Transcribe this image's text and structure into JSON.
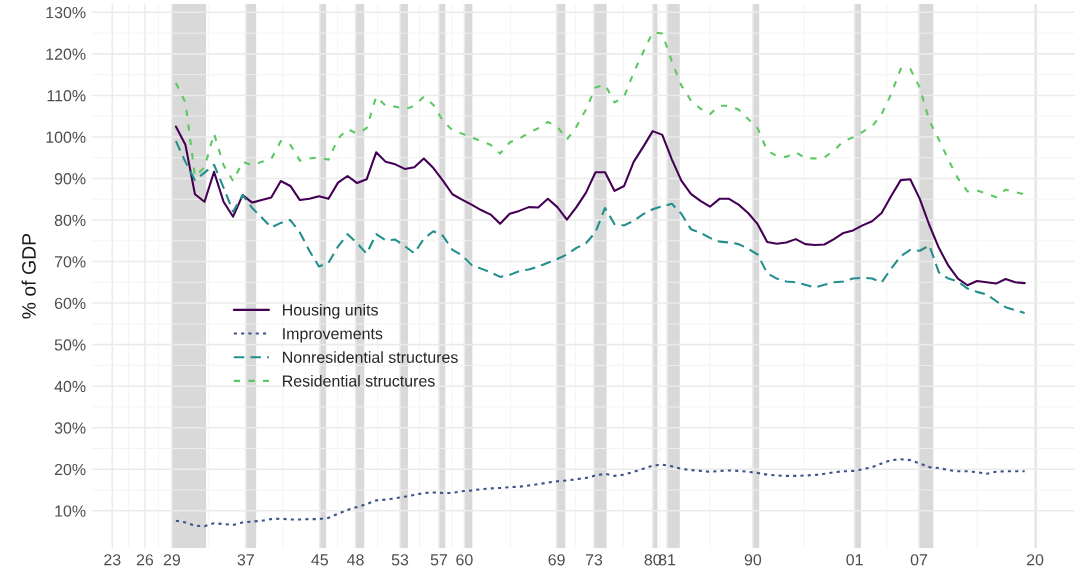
{
  "chart_data": {
    "type": "line",
    "ylabel": "% of GDP",
    "x": [
      "1929-12-31",
      "1930-12-31",
      "1931-12-31",
      "1932-12-31",
      "1933-12-31",
      "1934-12-31",
      "1935-12-31",
      "1936-12-31",
      "1937-12-31",
      "1938-12-31",
      "1939-12-31",
      "1940-12-31",
      "1941-12-31",
      "1942-12-31",
      "1943-12-31",
      "1944-12-31",
      "1945-12-31",
      "1946-12-31",
      "1947-12-31",
      "1948-12-31",
      "1949-12-31",
      "1950-12-31",
      "1951-12-31",
      "1952-12-31",
      "1953-12-31",
      "1954-12-31",
      "1955-12-31",
      "1956-12-31",
      "1957-12-31",
      "1958-12-31",
      "1959-12-31",
      "1960-12-31",
      "1961-12-31",
      "1962-12-31",
      "1963-12-31",
      "1964-12-31",
      "1965-12-31",
      "1966-12-31",
      "1967-12-31",
      "1968-12-31",
      "1969-12-31",
      "1970-12-31",
      "1971-12-31",
      "1972-12-31",
      "1973-12-31",
      "1974-12-31",
      "1975-12-31",
      "1976-12-31",
      "1977-12-31",
      "1978-12-31",
      "1979-12-31",
      "1980-12-31",
      "1981-12-31",
      "1982-12-31",
      "1983-12-31",
      "1984-12-31",
      "1985-12-31",
      "1986-12-31",
      "1987-12-31",
      "1988-12-31",
      "1989-12-31",
      "1990-12-31",
      "1991-12-31",
      "1992-12-31",
      "1993-12-31",
      "1994-12-31",
      "1995-12-31",
      "1996-12-31",
      "1997-12-31",
      "1998-12-31",
      "1999-12-31",
      "2000-12-31",
      "2001-12-31",
      "2002-12-31",
      "2003-12-31",
      "2004-12-31",
      "2005-12-31",
      "2006-12-31",
      "2007-12-31",
      "2008-12-31",
      "2009-12-31",
      "2010-12-31",
      "2011-12-31",
      "2012-12-31",
      "2013-12-31",
      "2014-12-31",
      "2015-12-31",
      "2016-12-31",
      "2017-12-31",
      "2018-12-31"
    ],
    "series": [
      {
        "name": "Housing units",
        "color": "#440154",
        "line_style": "solid",
        "values": [
          102.5,
          98.1,
          86.2,
          84.4,
          91.6,
          84.4,
          80.8,
          86,
          84.2,
          84.8,
          85.4,
          89.4,
          88.2,
          84.8,
          85.1,
          85.7,
          85.1,
          89,
          90.6,
          88.9,
          89.8,
          96.3,
          94,
          93.4,
          92.3,
          92.7,
          94.8,
          92.5,
          89.5,
          86.2,
          84.9,
          83.7,
          82.4,
          81.3,
          79.1,
          81.5,
          82.2,
          83.1,
          83,
          85.1,
          83.1,
          80.1,
          83.1,
          86.6,
          91.5,
          91.5,
          87,
          88.2,
          94,
          97.6,
          101.4,
          100.5,
          94.6,
          89.5,
          86.3,
          84.6,
          83.2,
          85.1,
          85.1,
          83.7,
          81.7,
          79,
          74.7,
          74.3,
          74.6,
          75.4,
          74.2,
          74,
          74.1,
          75.4,
          76.9,
          77.5,
          78.7,
          79.7,
          81.7,
          85.8,
          89.6,
          89.8,
          85.1,
          78.8,
          73.3,
          69,
          65.9,
          64.3,
          65.3,
          65,
          64.7,
          65.8,
          65,
          64.8
        ]
      },
      {
        "name": "Improvements",
        "color": "#3b528b",
        "line_style": "dotted",
        "values": [
          7.6,
          7.2,
          6.4,
          6.3,
          7,
          6.8,
          6.6,
          7.2,
          7.4,
          7.6,
          8,
          8.1,
          7.9,
          7.9,
          8,
          8,
          8.3,
          9.3,
          10.2,
          10.9,
          11.6,
          12.5,
          12.7,
          13,
          13.4,
          13.8,
          14.3,
          14.4,
          14.3,
          14.3,
          14.7,
          14.9,
          15.2,
          15.4,
          15.5,
          15.7,
          15.8,
          16.1,
          16.4,
          16.8,
          17.1,
          17.3,
          17.6,
          17.9,
          18.5,
          18.9,
          18.4,
          18.7,
          19.4,
          20.1,
          20.9,
          21.1,
          20.7,
          20.1,
          19.8,
          19.6,
          19.4,
          19.6,
          19.7,
          19.6,
          19.4,
          19.1,
          18.7,
          18.5,
          18.4,
          18.4,
          18.5,
          18.6,
          18.9,
          19.3,
          19.5,
          19.6,
          20,
          20.5,
          21.4,
          22.2,
          22.4,
          22.2,
          21.4,
          20.5,
          20.3,
          19.8,
          19.5,
          19.5,
          19.3,
          18.9,
          19.4,
          19.5,
          19.5,
          19.5
        ]
      },
      {
        "name": "Nonresidential structures",
        "color": "#21908c",
        "line_style": "dashed",
        "values": [
          99,
          94,
          89.6,
          91.4,
          93.3,
          87.8,
          82,
          86,
          82.9,
          80.6,
          78.2,
          79.3,
          80,
          77,
          72.6,
          68.8,
          69.7,
          73.6,
          76.6,
          74.4,
          71.9,
          76.6,
          75.1,
          75.3,
          73.7,
          72,
          75.5,
          77.3,
          76.2,
          72.8,
          71.5,
          69.2,
          68.3,
          67.4,
          66.3,
          66.8,
          67.7,
          68.1,
          68.8,
          69.7,
          70.6,
          71.7,
          73.3,
          74.4,
          77.1,
          82.9,
          79,
          78.7,
          79.8,
          81.4,
          82.6,
          83.3,
          83.9,
          81.5,
          77.8,
          76.9,
          75.7,
          74.8,
          74.6,
          74.2,
          73.1,
          71.7,
          67.2,
          65.9,
          65.2,
          65,
          64.4,
          63.8,
          64.4,
          65,
          65.2,
          65.9,
          66.1,
          65.9,
          65,
          68.3,
          71.3,
          72.8,
          72.6,
          73.9,
          67.4,
          65.9,
          65.2,
          63.5,
          62.7,
          62.1,
          60.5,
          59,
          58.3,
          57.6
        ]
      },
      {
        "name": "Residential structures",
        "color": "#5dc863",
        "line_style": "dashed",
        "values": [
          113,
          108.3,
          90.5,
          92.7,
          100.8,
          93.2,
          89.4,
          94,
          93.2,
          94,
          94.7,
          99,
          98.1,
          94.3,
          94.8,
          95.1,
          94.5,
          99.6,
          101.9,
          100.8,
          102.1,
          109.7,
          107.5,
          107.3,
          106.6,
          107.5,
          109.7,
          107.7,
          103.9,
          101.6,
          100.8,
          99.9,
          99,
          98.1,
          96,
          98.7,
          99.6,
          101,
          102.1,
          103.6,
          102.5,
          99.4,
          102.5,
          106.6,
          111.9,
          112.6,
          108.3,
          109.7,
          115.5,
          120.4,
          125.2,
          124.9,
          118.2,
          112.4,
          108.8,
          106.8,
          105.5,
          107.5,
          107.5,
          106.6,
          104.3,
          102.1,
          96.7,
          95.4,
          95.2,
          96.3,
          94.9,
          94.8,
          95.1,
          96.7,
          99,
          99.9,
          101.2,
          102.5,
          105.5,
          110.3,
          116.4,
          116.4,
          111.9,
          103.9,
          99.4,
          94.5,
          90,
          86.9,
          87.1,
          86.4,
          85.5,
          87.3,
          86.7,
          86.2
        ]
      }
    ],
    "xlim": [
      "1921-03-01",
      "2024-04-01"
    ],
    "xticks": [
      {
        "value": "1923-05-01",
        "label": "23"
      },
      {
        "value": "1926-10-01",
        "label": "26"
      },
      {
        "value": "1929-08-01",
        "label": "29"
      },
      {
        "value": "1937-05-01",
        "label": "37"
      },
      {
        "value": "1945-02-01",
        "label": "45"
      },
      {
        "value": "1948-11-01",
        "label": "48"
      },
      {
        "value": "1953-07-01",
        "label": "53"
      },
      {
        "value": "1957-08-01",
        "label": "57"
      },
      {
        "value": "1960-04-01",
        "label": "60"
      },
      {
        "value": "1969-12-01",
        "label": "69"
      },
      {
        "value": "1973-11-01",
        "label": "73"
      },
      {
        "value": "1980-01-01",
        "label": "80"
      },
      {
        "value": "1981-07-01",
        "label": "81"
      },
      {
        "value": "1990-07-01",
        "label": "90"
      },
      {
        "value": "2001-03-01",
        "label": "01"
      },
      {
        "value": "2007-12-01",
        "label": "07"
      },
      {
        "value": "2020-02-01",
        "label": "20"
      }
    ],
    "ylim": [
      1,
      132
    ],
    "yticks": [
      {
        "value": 10,
        "label": "10%"
      },
      {
        "value": 20,
        "label": "20%"
      },
      {
        "value": 30,
        "label": "30%"
      },
      {
        "value": 40,
        "label": "40%"
      },
      {
        "value": 50,
        "label": "50%"
      },
      {
        "value": 60,
        "label": "60%"
      },
      {
        "value": 70,
        "label": "70%"
      },
      {
        "value": 80,
        "label": "80%"
      },
      {
        "value": 90,
        "label": "90%"
      },
      {
        "value": 100,
        "label": "100%"
      },
      {
        "value": 110,
        "label": "110%"
      },
      {
        "value": 120,
        "label": "120%"
      },
      {
        "value": 130,
        "label": "130%"
      }
    ],
    "bands": [
      {
        "axis": "x",
        "from": "1929-08-01",
        "to": "1933-03-01",
        "color": "#d9d9d9"
      },
      {
        "axis": "x",
        "from": "1937-05-01",
        "to": "1938-06-01",
        "color": "#d9d9d9"
      },
      {
        "axis": "x",
        "from": "1945-02-01",
        "to": "1945-10-01",
        "color": "#d9d9d9"
      },
      {
        "axis": "x",
        "from": "1948-11-01",
        "to": "1949-10-01",
        "color": "#d9d9d9"
      },
      {
        "axis": "x",
        "from": "1953-07-01",
        "to": "1954-05-01",
        "color": "#d9d9d9"
      },
      {
        "axis": "x",
        "from": "1957-08-01",
        "to": "1958-04-01",
        "color": "#d9d9d9"
      },
      {
        "axis": "x",
        "from": "1960-04-01",
        "to": "1961-02-01",
        "color": "#d9d9d9"
      },
      {
        "axis": "x",
        "from": "1969-12-01",
        "to": "1970-11-01",
        "color": "#d9d9d9"
      },
      {
        "axis": "x",
        "from": "1973-11-01",
        "to": "1975-03-01",
        "color": "#d9d9d9"
      },
      {
        "axis": "x",
        "from": "1980-01-01",
        "to": "1980-07-01",
        "color": "#d9d9d9"
      },
      {
        "axis": "x",
        "from": "1981-07-01",
        "to": "1982-11-01",
        "color": "#d9d9d9"
      },
      {
        "axis": "x",
        "from": "1990-07-01",
        "to": "1991-03-01",
        "color": "#d9d9d9"
      },
      {
        "axis": "x",
        "from": "2001-03-01",
        "to": "2001-11-01",
        "color": "#d9d9d9"
      },
      {
        "axis": "x",
        "from": "2007-12-01",
        "to": "2009-06-01",
        "color": "#d9d9d9"
      },
      {
        "axis": "x",
        "from": "2020-02-01",
        "to": "2020-04-01",
        "color": "#d9d9d9"
      }
    ],
    "grid": true,
    "legend": "left"
  }
}
